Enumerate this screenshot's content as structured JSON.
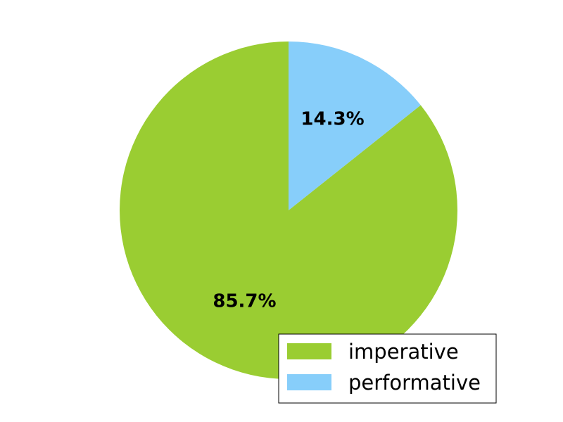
{
  "chart_data": {
    "type": "pie",
    "title": "",
    "slices": [
      {
        "label": "imperative",
        "value": 85.7,
        "display": "85.7%",
        "color": "#9ACD32"
      },
      {
        "label": "performative",
        "value": 14.3,
        "display": "14.3%",
        "color": "#87CEFA"
      }
    ],
    "start_angle_deg": 90,
    "direction": "counterclockwise",
    "legend": {
      "position": "lower-right",
      "entries": [
        "imperative",
        "performative"
      ]
    }
  }
}
